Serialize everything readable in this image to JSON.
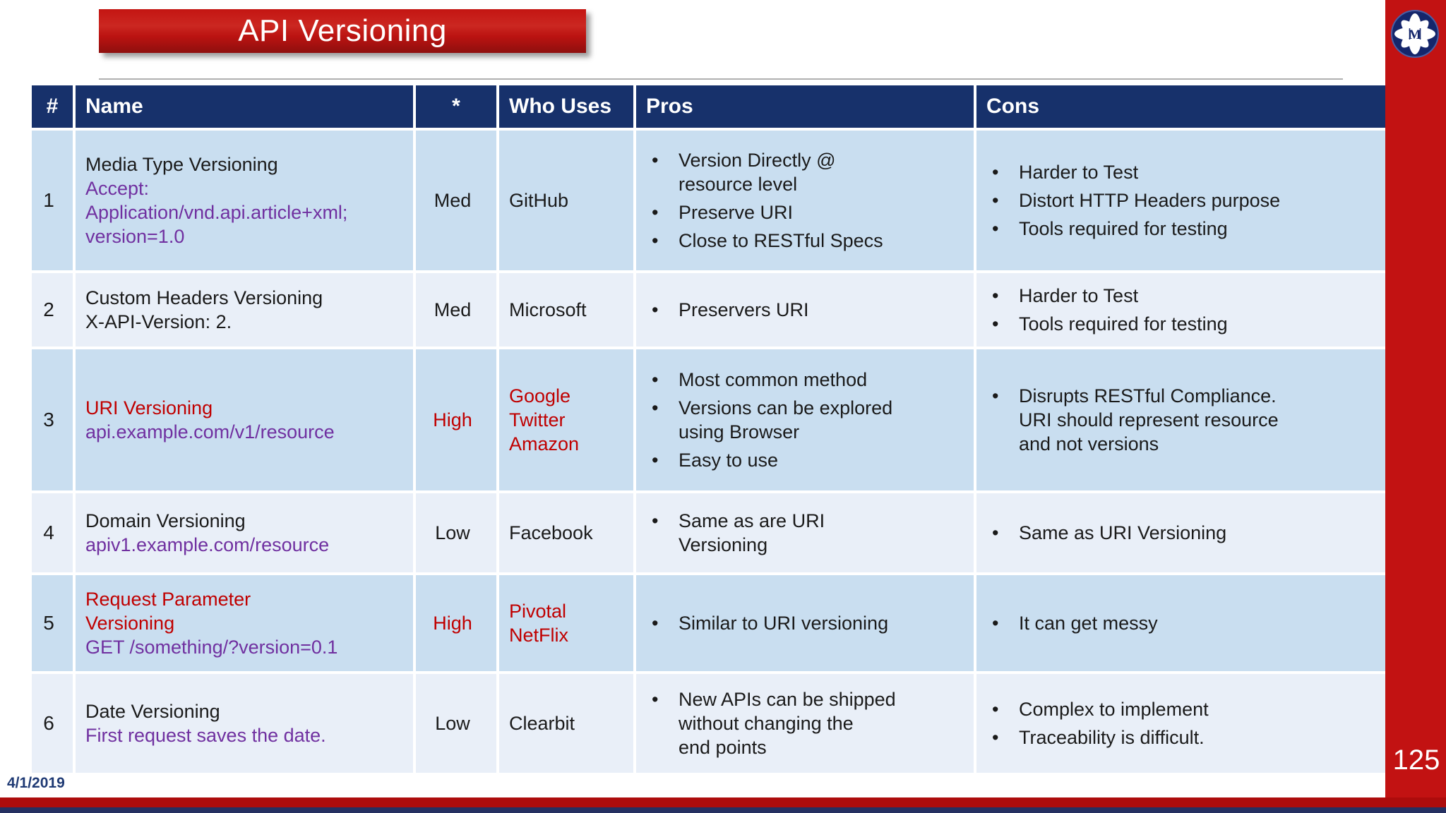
{
  "slide": {
    "title": "API Versioning",
    "date": "4/1/2019",
    "page_number": "125",
    "logo_letter": "M"
  },
  "colors": {
    "accent_red": "#c21212",
    "text_red": "#c00000",
    "code_purple": "#7030a0",
    "header_navy": "#17316b",
    "row_odd": "#c9def0",
    "row_even": "#e9eff8",
    "text_black": "#1a1a1a",
    "navy_text": "#1f3a74"
  },
  "table": {
    "headers": [
      "#",
      "Name",
      "*",
      "Who Uses",
      "Pros",
      "Cons"
    ],
    "rows": [
      {
        "num": "1",
        "name": "Media Type Versioning",
        "name_color": "#1a1a1a",
        "code": "Accept:\nApplication/vnd.api.article+xml;\nversion=1.0",
        "code_color": "#7030a0",
        "usage": "Med",
        "usage_color": "#1a1a1a",
        "who": "GitHub",
        "who_color": "#1a1a1a",
        "pros": [
          "Version Directly @\nresource level",
          "Preserve URI",
          "Close to RESTful Specs"
        ],
        "cons": [
          "Harder to Test",
          "Distort HTTP Headers purpose",
          "Tools required for testing"
        ]
      },
      {
        "num": "2",
        "name": "Custom Headers Versioning",
        "name_color": "#1a1a1a",
        "code": "X-API-Version: 2.",
        "code_color": "#1a1a1a",
        "usage": "Med",
        "usage_color": "#1a1a1a",
        "who": "Microsoft",
        "who_color": "#1a1a1a",
        "pros": [
          "Preservers URI"
        ],
        "cons": [
          "Harder to Test",
          "Tools required for testing"
        ]
      },
      {
        "num": "3",
        "name": "URI Versioning",
        "name_color": "#c00000",
        "code": "api.example.com/v1/resource",
        "code_color": "#7030a0",
        "usage": "High",
        "usage_color": "#c00000",
        "who": "Google\nTwitter\nAmazon",
        "who_color": "#c00000",
        "pros": [
          "Most common method",
          "Versions can be explored\nusing Browser",
          "Easy to use"
        ],
        "cons": [
          "Disrupts RESTful Compliance.\nURI should represent resource\nand not versions"
        ]
      },
      {
        "num": "4",
        "name": "Domain Versioning",
        "name_color": "#1a1a1a",
        "code": "apiv1.example.com/resource",
        "code_color": "#7030a0",
        "usage": "Low",
        "usage_color": "#1a1a1a",
        "who": "Facebook",
        "who_color": "#1a1a1a",
        "pros": [
          "Same as are URI\nVersioning"
        ],
        "cons": [
          "Same as URI Versioning"
        ]
      },
      {
        "num": "5",
        "name": "Request Parameter\nVersioning",
        "name_color": "#c00000",
        "code": "GET /something/?version=0.1",
        "code_color": "#7030a0",
        "usage": "High",
        "usage_color": "#c00000",
        "who": "Pivotal\nNetFlix",
        "who_color": "#c00000",
        "pros": [
          "Similar to URI versioning"
        ],
        "cons": [
          "It can get messy"
        ]
      },
      {
        "num": "6",
        "name": "Date Versioning",
        "name_color": "#1a1a1a",
        "code": "First request saves the date.",
        "code_color": "#7030a0",
        "usage": "Low",
        "usage_color": "#1a1a1a",
        "who": "Clearbit",
        "who_color": "#1a1a1a",
        "pros": [
          "New APIs can be shipped\nwithout changing the\nend points"
        ],
        "cons": [
          "Complex to implement",
          "Traceability is difficult."
        ]
      }
    ]
  }
}
